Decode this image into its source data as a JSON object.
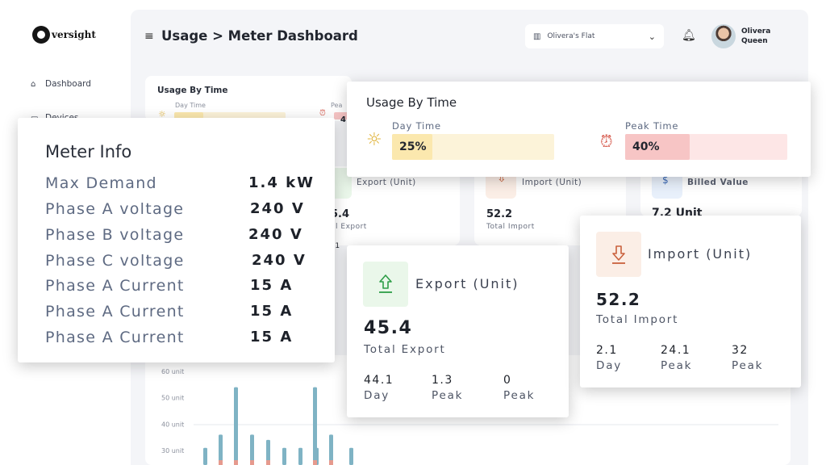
{
  "app": {
    "logo_text": "versight"
  },
  "sidebar": {
    "items": [
      {
        "label": "Dashboard",
        "icon": "home-icon"
      },
      {
        "label": "Devices",
        "icon": "device-icon"
      }
    ]
  },
  "header": {
    "title": "Usage > Meter Dashboard",
    "location": "Olivera's Flat",
    "user_first": "Olivera",
    "user_last": "Queen"
  },
  "background": {
    "usage_title": "Usage By Time",
    "day_label": "Day Time",
    "peak_label": "Pea",
    "peak_val": "4",
    "export_title": "Export (Unit)",
    "export_value": "5.4",
    "export_sub": "al Export",
    "export_partial": ".1",
    "import_title": "Import (Unit)",
    "import_value": "52.2",
    "import_sub": "Total Import",
    "billed_title": "Billed Value",
    "billed_value": "7.2 Unit"
  },
  "meter_info": {
    "title": "Meter Info",
    "rows": [
      {
        "label": "Max Demand",
        "value": "1.4 kW"
      },
      {
        "label": "Phase A voltage",
        "value": "240 V"
      },
      {
        "label": "Phase B voltage",
        "value": "240 V"
      },
      {
        "label": "Phase C voltage",
        "value": "240 V"
      },
      {
        "label": "Phase A Current",
        "value": "15 A"
      },
      {
        "label": "Phase A Current",
        "value": "15 A"
      },
      {
        "label": "Phase A Current",
        "value": "15 A"
      }
    ]
  },
  "usage_by_time": {
    "title": "Usage By Time",
    "day": {
      "label": "Day Time",
      "value": "25%",
      "fraction": 0.25,
      "color": "#fbe8ae",
      "track": "#fcf3d9"
    },
    "peak": {
      "label": "Peak Time",
      "value": "40%",
      "fraction": 0.4,
      "color": "#f7c5c5",
      "track": "#fde6e6"
    }
  },
  "export_card": {
    "title": "Export (Unit)",
    "value": "45.4",
    "sub": "Total Export",
    "stats": [
      {
        "value": "44.1",
        "label": "Day"
      },
      {
        "value": "1.3",
        "label": "Peak"
      },
      {
        "value": "0",
        "label": "Peak"
      }
    ],
    "accent": "#2e9e47",
    "icon_bg": "#eaf7ea"
  },
  "import_card": {
    "title": "Import (Unit)",
    "value": "52.2",
    "sub": "Total Import",
    "stats": [
      {
        "value": "2.1",
        "label": "Day"
      },
      {
        "value": "24.1",
        "label": "Peak"
      },
      {
        "value": "32",
        "label": "Peak"
      }
    ],
    "accent": "#c9613d",
    "icon_bg": "#fbeee6"
  },
  "chart_data": {
    "type": "bar",
    "y_ticks": [
      "60 unit",
      "50 unit",
      "40 unit",
      "30 unit"
    ],
    "ylim": [
      30,
      60
    ],
    "values": [
      31,
      36,
      54,
      36,
      34,
      31,
      31,
      31,
      54,
      36,
      31
    ],
    "color": "#7fb3c4",
    "accent_color": "#e69a8e"
  }
}
